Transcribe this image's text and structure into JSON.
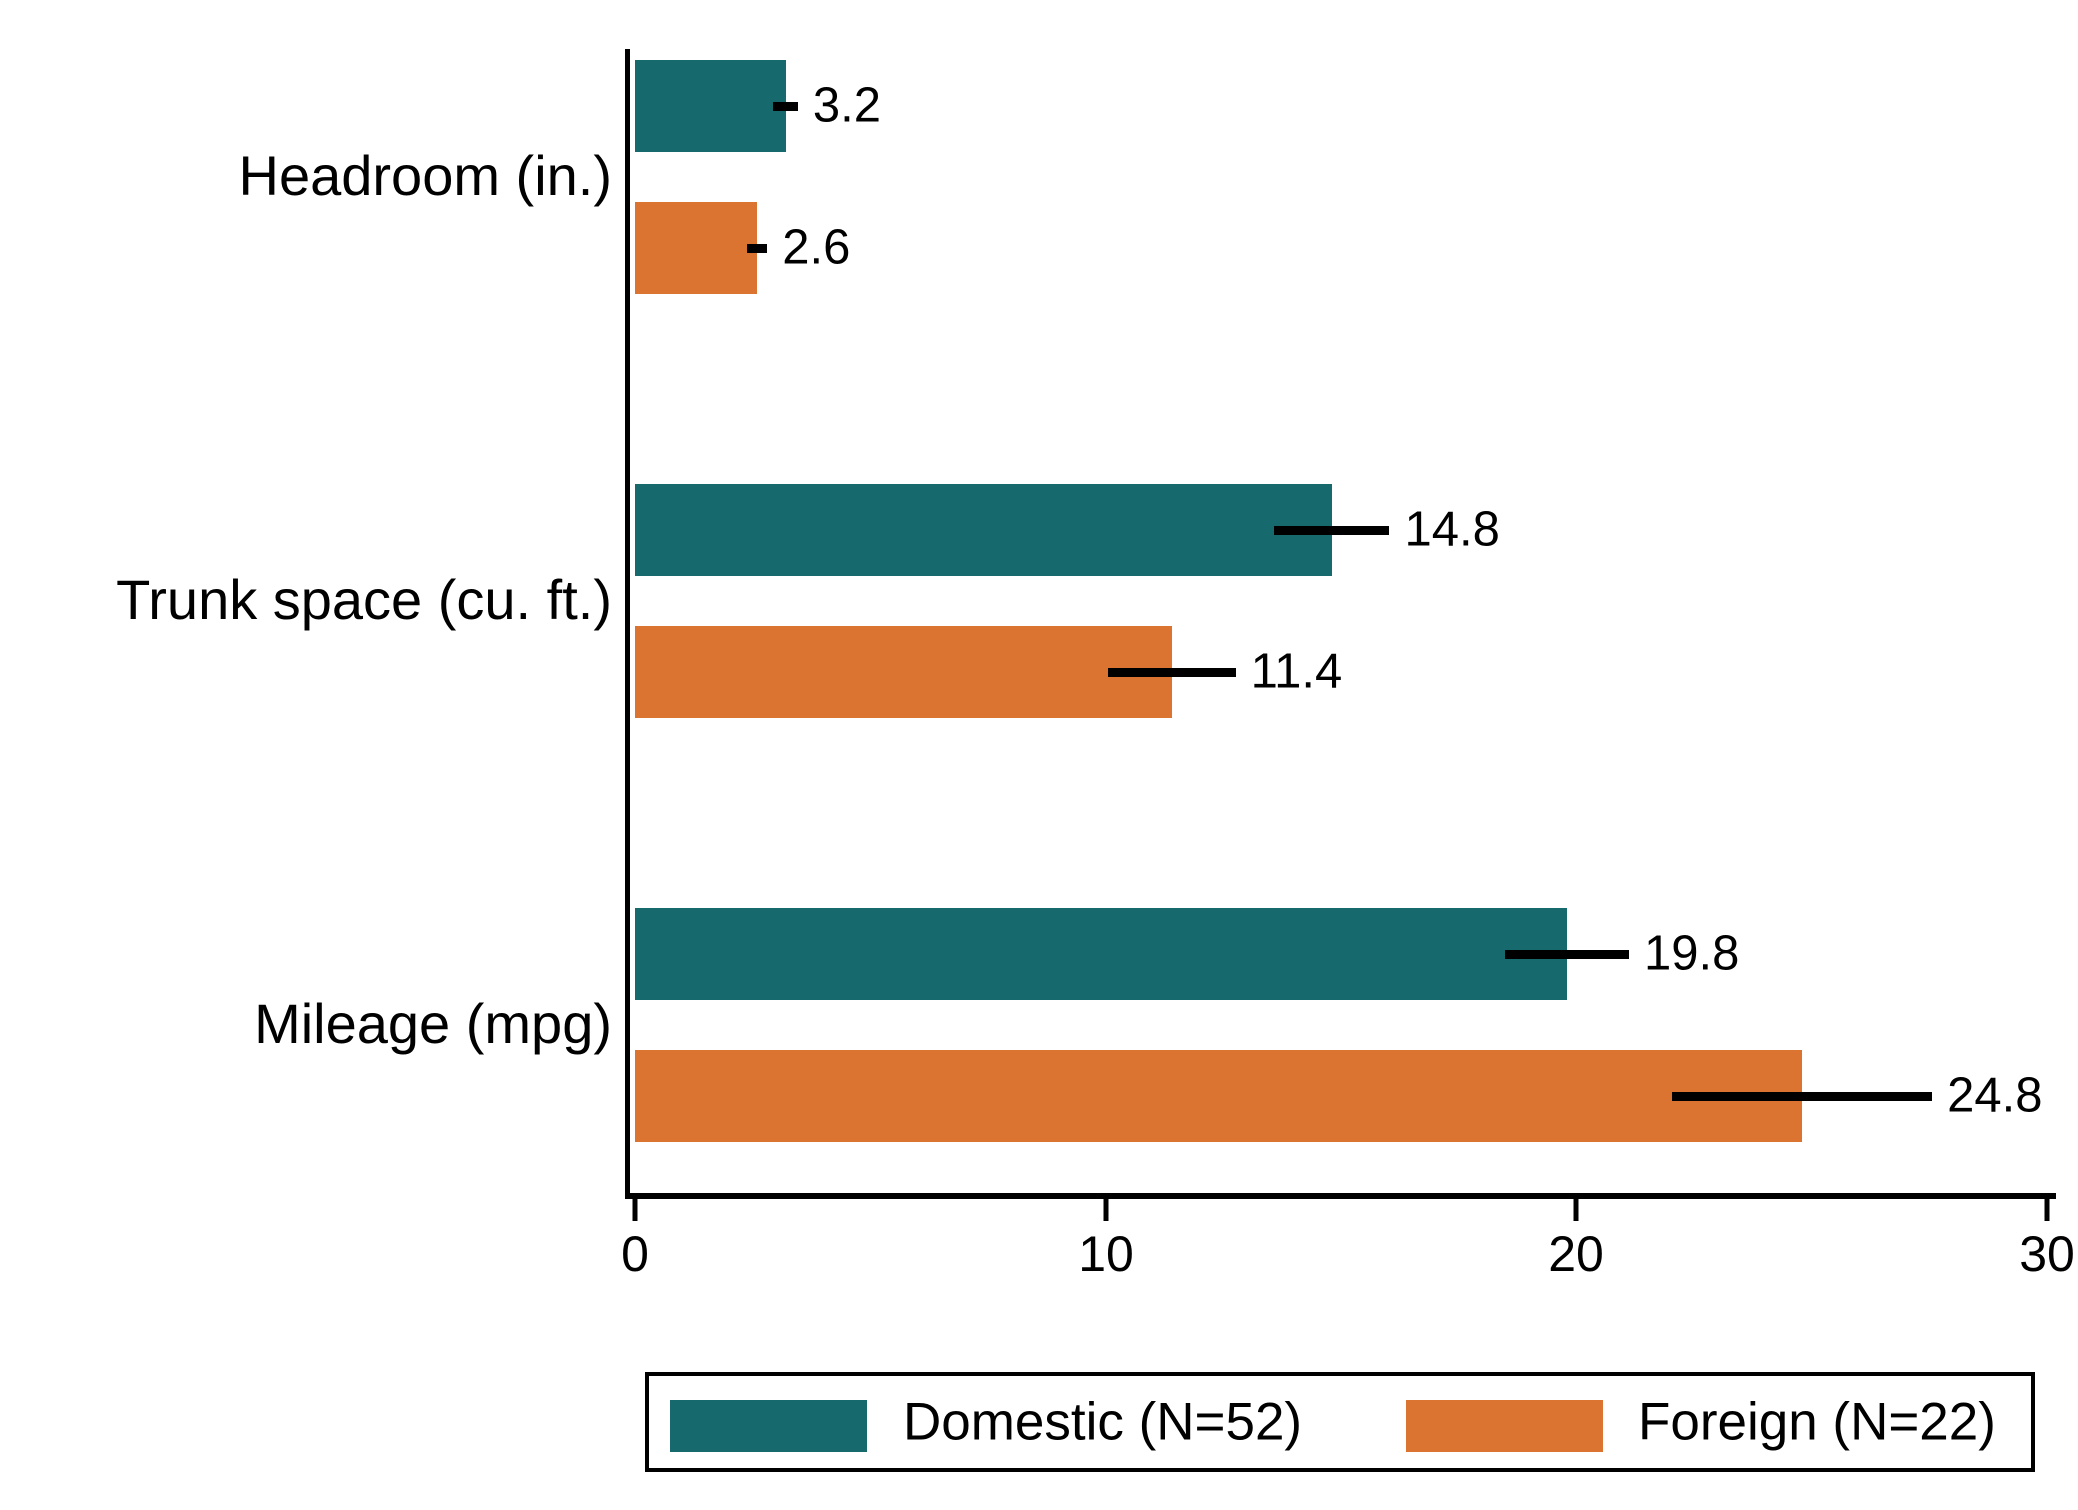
{
  "chart_data": {
    "type": "bar",
    "orientation": "horizontal",
    "title": "",
    "xlabel": "",
    "ylabel": "",
    "xlim": [
      0,
      30
    ],
    "xticks": [
      0,
      10,
      20,
      30
    ],
    "grid": false,
    "legend_position": "bottom",
    "axis_color": "#000000",
    "error_bar_color": "#000000",
    "categories": [
      "Headroom (in.)",
      "Trunk space (cu. ft.)",
      "Mileage (mpg)"
    ],
    "series": [
      {
        "name": "Domestic (N=52)",
        "color": "#166A6E",
        "values": [
          3.2,
          14.8,
          19.8
        ],
        "value_labels": [
          "3.2",
          "14.8",
          "19.8"
        ],
        "ci_halfwidth": [
          0.26,
          1.23,
          1.32
        ]
      },
      {
        "name": "Foreign (N=22)",
        "color": "#DB7431",
        "values": [
          2.6,
          11.4,
          24.8
        ],
        "value_labels": [
          "2.6",
          "11.4",
          "24.8"
        ],
        "ci_halfwidth": [
          0.21,
          1.36,
          2.76
        ]
      }
    ]
  }
}
